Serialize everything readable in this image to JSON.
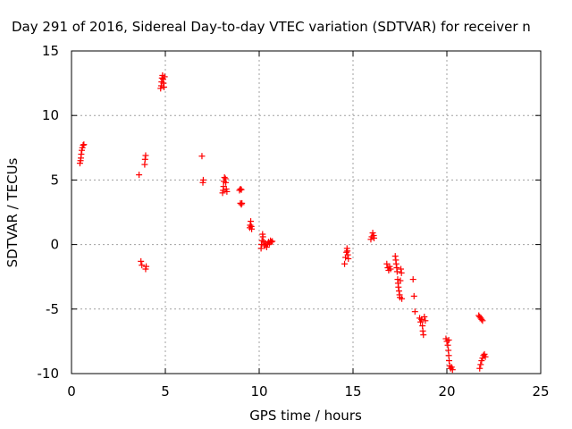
{
  "chart_data": {
    "type": "scatter",
    "title": "Day 291 of 2016, Sidereal Day-to-day VTEC variation (SDTVAR) for receiver n",
    "xlabel": "GPS time / hours",
    "ylabel": "SDTVAR / TECUs",
    "xlim": [
      0,
      25
    ],
    "ylim": [
      -10,
      15
    ],
    "xticks": [
      0,
      5,
      10,
      15,
      20,
      25
    ],
    "yticks": [
      -10,
      -5,
      0,
      5,
      10,
      15
    ],
    "xtick_labels": [
      "0",
      "5",
      "10",
      "15",
      "20",
      "25"
    ],
    "ytick_labels": [
      "-10",
      "-5",
      "0",
      "5",
      "10",
      "15"
    ],
    "grid": true,
    "marker": "plus",
    "color": "#ff0000",
    "series": [
      {
        "name": "SDTVAR",
        "points": [
          [
            0.45,
            6.3
          ],
          [
            0.48,
            6.5
          ],
          [
            0.5,
            6.7
          ],
          [
            0.52,
            7.0
          ],
          [
            0.55,
            7.3
          ],
          [
            0.58,
            7.5
          ],
          [
            0.62,
            7.7
          ],
          [
            0.66,
            7.75
          ],
          [
            3.6,
            5.4
          ],
          [
            3.7,
            -1.3
          ],
          [
            3.75,
            -1.6
          ],
          [
            3.9,
            6.2
          ],
          [
            3.92,
            6.6
          ],
          [
            3.95,
            6.9
          ],
          [
            3.95,
            -1.9
          ],
          [
            3.98,
            -1.7
          ],
          [
            4.75,
            12.1
          ],
          [
            4.78,
            12.3
          ],
          [
            4.8,
            12.6
          ],
          [
            4.82,
            12.9
          ],
          [
            4.85,
            13.1
          ],
          [
            4.88,
            12.8
          ],
          [
            4.9,
            12.5
          ],
          [
            4.93,
            12.2
          ],
          [
            4.96,
            13.0
          ],
          [
            6.95,
            6.85
          ],
          [
            7.0,
            4.8
          ],
          [
            7.02,
            5.0
          ],
          [
            8.05,
            4.0
          ],
          [
            8.08,
            4.2
          ],
          [
            8.1,
            4.5
          ],
          [
            8.12,
            4.9
          ],
          [
            8.15,
            5.2
          ],
          [
            8.2,
            5.1
          ],
          [
            8.22,
            4.8
          ],
          [
            8.25,
            4.3
          ],
          [
            8.28,
            4.1
          ],
          [
            8.95,
            4.2
          ],
          [
            9.0,
            4.3
          ],
          [
            9.05,
            4.25
          ],
          [
            9.0,
            3.2
          ],
          [
            9.05,
            3.1
          ],
          [
            9.08,
            3.2
          ],
          [
            9.5,
            1.3
          ],
          [
            9.52,
            1.5
          ],
          [
            9.55,
            1.8
          ],
          [
            9.58,
            1.4
          ],
          [
            9.6,
            1.2
          ],
          [
            10.1,
            -0.3
          ],
          [
            10.12,
            0.0
          ],
          [
            10.15,
            0.3
          ],
          [
            10.18,
            0.8
          ],
          [
            10.2,
            0.6
          ],
          [
            10.25,
            0.2
          ],
          [
            10.3,
            -0.1
          ],
          [
            10.35,
            0.1
          ],
          [
            10.4,
            -0.2
          ],
          [
            10.45,
            0.0
          ],
          [
            10.5,
            0.2
          ],
          [
            10.55,
            0.1
          ],
          [
            10.6,
            0.3
          ],
          [
            10.65,
            0.2
          ],
          [
            10.7,
            0.25
          ],
          [
            14.55,
            -1.5
          ],
          [
            14.6,
            -1.0
          ],
          [
            14.65,
            -0.6
          ],
          [
            14.68,
            -0.3
          ],
          [
            14.7,
            -0.5
          ],
          [
            14.72,
            -0.8
          ],
          [
            14.75,
            -1.1
          ],
          [
            15.95,
            0.4
          ],
          [
            16.0,
            0.6
          ],
          [
            16.05,
            0.9
          ],
          [
            16.1,
            0.7
          ],
          [
            16.12,
            0.5
          ],
          [
            16.8,
            -1.5
          ],
          [
            16.85,
            -1.8
          ],
          [
            16.9,
            -2.0
          ],
          [
            16.95,
            -1.7
          ],
          [
            17.0,
            -1.9
          ],
          [
            17.25,
            -0.9
          ],
          [
            17.28,
            -1.2
          ],
          [
            17.3,
            -1.5
          ],
          [
            17.33,
            -1.8
          ],
          [
            17.35,
            -2.1
          ],
          [
            17.38,
            -2.7
          ],
          [
            17.4,
            -3.0
          ],
          [
            17.42,
            -3.3
          ],
          [
            17.45,
            -3.6
          ],
          [
            17.48,
            -3.9
          ],
          [
            17.5,
            -4.1
          ],
          [
            17.52,
            -2.8
          ],
          [
            17.55,
            -1.9
          ],
          [
            17.58,
            -2.2
          ],
          [
            17.6,
            -4.2
          ],
          [
            18.2,
            -2.7
          ],
          [
            18.25,
            -4.0
          ],
          [
            18.3,
            -5.2
          ],
          [
            18.55,
            -5.7
          ],
          [
            18.6,
            -6.0
          ],
          [
            18.65,
            -5.8
          ],
          [
            18.7,
            -6.3
          ],
          [
            18.72,
            -6.7
          ],
          [
            18.75,
            -7.0
          ],
          [
            18.8,
            -5.6
          ],
          [
            18.85,
            -5.9
          ],
          [
            19.95,
            -7.3
          ],
          [
            20.0,
            -7.5
          ],
          [
            20.05,
            -7.8
          ],
          [
            20.08,
            -8.2
          ],
          [
            20.1,
            -8.6
          ],
          [
            20.12,
            -9.0
          ],
          [
            20.15,
            -9.4
          ],
          [
            20.2,
            -9.6
          ],
          [
            20.25,
            -9.5
          ],
          [
            20.3,
            -9.7
          ],
          [
            20.1,
            -7.4
          ],
          [
            21.7,
            -5.5
          ],
          [
            21.75,
            -5.6
          ],
          [
            21.8,
            -5.7
          ],
          [
            21.85,
            -5.8
          ],
          [
            21.9,
            -5.9
          ],
          [
            21.75,
            -9.6
          ],
          [
            21.8,
            -9.3
          ],
          [
            21.85,
            -9.0
          ],
          [
            21.9,
            -8.8
          ],
          [
            21.95,
            -8.6
          ],
          [
            22.0,
            -8.5
          ],
          [
            22.05,
            -8.7
          ]
        ]
      }
    ]
  }
}
